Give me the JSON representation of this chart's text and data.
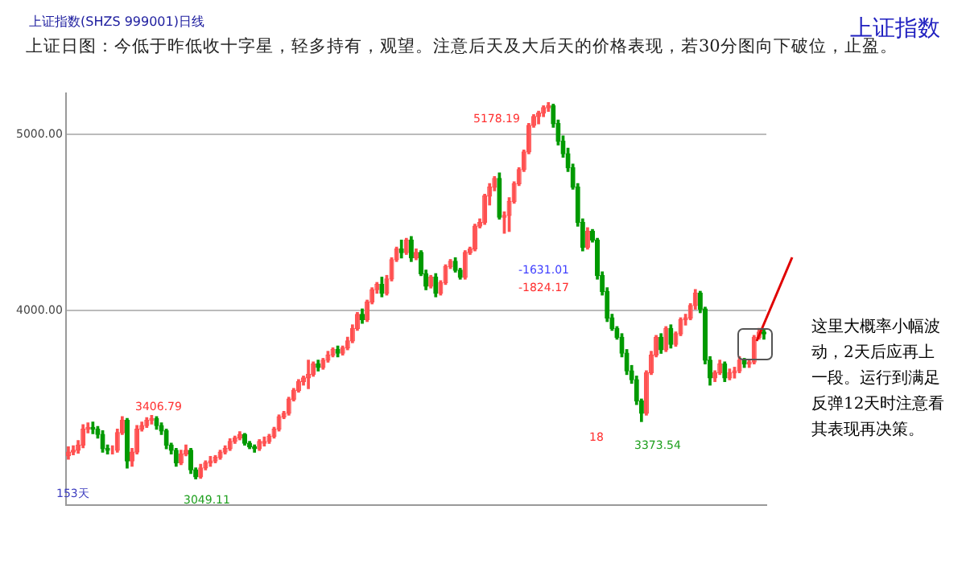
{
  "chart_data": {
    "type": "candlestick",
    "title": "上证日图：今低于昨低收十字星，轻多持有，观望。注意后天及大后天的价格表现，若30分图向下破位，止盈。",
    "subtitle": "上证指数(SHZS 999001)日线",
    "categories": [
      null,
      null,
      null,
      null,
      null,
      null,
      null,
      null,
      null,
      null,
      null,
      null,
      null,
      null,
      null,
      null,
      null,
      null,
      null,
      null,
      null,
      null,
      null,
      null,
      null,
      null,
      null,
      null,
      null,
      null,
      null,
      null,
      null,
      null,
      null,
      null,
      null,
      null,
      null,
      null,
      null,
      null,
      null,
      null,
      null,
      null,
      null,
      null,
      null,
      null,
      null,
      null,
      null,
      null,
      null,
      null,
      null,
      null,
      null,
      null,
      null,
      null,
      null,
      null,
      null,
      null,
      null,
      null,
      null,
      null,
      null,
      null,
      null,
      null,
      null,
      null,
      null,
      null,
      null,
      null,
      null,
      null,
      null,
      null,
      null,
      null,
      null,
      null,
      null,
      null,
      null,
      null,
      null,
      null,
      null,
      null,
      null,
      null,
      null,
      null,
      null,
      null,
      null,
      null,
      null,
      null,
      null,
      null,
      null,
      null,
      null,
      null,
      null,
      null,
      null,
      null,
      null,
      null,
      null,
      null,
      null,
      null,
      null,
      null,
      null,
      null,
      null,
      null,
      null,
      null,
      null,
      null,
      null,
      null,
      null,
      null,
      null,
      null,
      null,
      null,
      null,
      null,
      null
    ],
    "ohlc": [
      [
        3180,
        3230,
        3160,
        3200
      ],
      [
        3200,
        3235,
        3185,
        3210
      ],
      [
        3210,
        3265,
        3195,
        3240
      ],
      [
        3240,
        3355,
        3225,
        3330
      ],
      [
        3330,
        3365,
        3310,
        3340
      ],
      [
        3340,
        3370,
        3305,
        3330
      ],
      [
        3330,
        3345,
        3280,
        3300
      ],
      [
        3300,
        3320,
        3200,
        3220
      ],
      [
        3220,
        3240,
        3190,
        3210
      ],
      [
        3210,
        3235,
        3190,
        3210
      ],
      [
        3210,
        3330,
        3200,
        3310
      ],
      [
        3310,
        3400,
        3300,
        3380
      ],
      [
        3380,
        3390,
        3110,
        3150
      ],
      [
        3150,
        3220,
        3120,
        3200
      ],
      [
        3200,
        3350,
        3190,
        3330
      ],
      [
        3330,
        3370,
        3320,
        3350
      ],
      [
        3350,
        3395,
        3340,
        3380
      ],
      [
        3380,
        3406.79,
        3360,
        3390
      ],
      [
        3390,
        3400,
        3330,
        3350
      ],
      [
        3350,
        3365,
        3300,
        3320
      ],
      [
        3320,
        3330,
        3220,
        3240
      ],
      [
        3240,
        3250,
        3190,
        3210
      ],
      [
        3210,
        3220,
        3120,
        3140
      ],
      [
        3140,
        3210,
        3130,
        3190
      ],
      [
        3190,
        3240,
        3180,
        3210
      ],
      [
        3210,
        3220,
        3080,
        3100
      ],
      [
        3100,
        3110,
        3049.11,
        3060
      ],
      [
        3060,
        3130,
        3052,
        3110
      ],
      [
        3110,
        3150,
        3100,
        3140
      ],
      [
        3140,
        3175,
        3120,
        3150
      ],
      [
        3150,
        3180,
        3140,
        3170
      ],
      [
        3170,
        3210,
        3160,
        3200
      ],
      [
        3200,
        3235,
        3190,
        3220
      ],
      [
        3220,
        3275,
        3210,
        3260
      ],
      [
        3260,
        3290,
        3250,
        3280
      ],
      [
        3280,
        3315,
        3270,
        3300
      ],
      [
        3300,
        3305,
        3240,
        3250
      ],
      [
        3250,
        3260,
        3220,
        3230
      ],
      [
        3230,
        3240,
        3200,
        3220
      ],
      [
        3220,
        3270,
        3210,
        3260
      ],
      [
        3250,
        3285,
        3235,
        3260
      ],
      [
        3260,
        3300,
        3250,
        3290
      ],
      [
        3290,
        3340,
        3280,
        3330
      ],
      [
        3330,
        3410,
        3320,
        3400
      ],
      [
        3400,
        3430,
        3390,
        3420
      ],
      [
        3420,
        3510,
        3410,
        3500
      ],
      [
        3500,
        3560,
        3490,
        3550
      ],
      [
        3550,
        3610,
        3540,
        3600
      ],
      [
        3600,
        3630,
        3580,
        3620
      ],
      [
        3620,
        3720,
        3560,
        3640
      ],
      [
        3640,
        3710,
        3630,
        3700
      ],
      [
        3700,
        3720,
        3660,
        3680
      ],
      [
        3680,
        3730,
        3670,
        3720
      ],
      [
        3720,
        3770,
        3710,
        3750
      ],
      [
        3750,
        3790,
        3740,
        3780
      ],
      [
        3780,
        3800,
        3740,
        3760
      ],
      [
        3760,
        3800,
        3750,
        3790
      ],
      [
        3790,
        3850,
        3780,
        3830
      ],
      [
        3830,
        3920,
        3820,
        3900
      ],
      [
        3900,
        3990,
        3890,
        3980
      ],
      [
        3980,
        4010,
        3930,
        3950
      ],
      [
        3950,
        4060,
        3940,
        4050
      ],
      [
        4050,
        4130,
        4040,
        4120
      ],
      [
        4120,
        4160,
        4100,
        4150
      ],
      [
        4150,
        4190,
        4080,
        4100
      ],
      [
        4100,
        4200,
        4090,
        4180
      ],
      [
        4180,
        4300,
        4170,
        4290
      ],
      [
        4290,
        4360,
        4280,
        4350
      ],
      [
        4350,
        4400,
        4300,
        4330
      ],
      [
        4330,
        4410,
        4320,
        4400
      ],
      [
        4400,
        4420,
        4280,
        4300
      ],
      [
        4300,
        4350,
        4290,
        4330
      ],
      [
        4330,
        4340,
        4200,
        4210
      ],
      [
        4210,
        4230,
        4120,
        4140
      ],
      [
        4140,
        4200,
        4130,
        4190
      ],
      [
        4190,
        4210,
        4080,
        4100
      ],
      [
        4100,
        4170,
        4090,
        4160
      ],
      [
        4160,
        4260,
        4150,
        4250
      ],
      [
        4250,
        4290,
        4240,
        4280
      ],
      [
        4280,
        4300,
        4220,
        4230
      ],
      [
        4230,
        4240,
        4180,
        4190
      ],
      [
        4190,
        4340,
        4180,
        4330
      ],
      [
        4330,
        4360,
        4320,
        4350
      ],
      [
        4350,
        4490,
        4340,
        4480
      ],
      [
        4480,
        4520,
        4470,
        4500
      ],
      [
        4500,
        4660,
        4490,
        4650
      ],
      [
        4650,
        4720,
        4600,
        4700
      ],
      [
        4700,
        4760,
        4680,
        4750
      ],
      [
        4750,
        4780,
        4520,
        4530
      ],
      [
        4530,
        4560,
        4440,
        4540
      ],
      [
        4540,
        4640,
        4450,
        4620
      ],
      [
        4620,
        4730,
        4610,
        4720
      ],
      [
        4720,
        4810,
        4710,
        4800
      ],
      [
        4800,
        4910,
        4790,
        4900
      ],
      [
        4900,
        5060,
        4890,
        5050
      ],
      [
        5050,
        5110,
        5040,
        5100
      ],
      [
        5100,
        5130,
        5060,
        5120
      ],
      [
        5120,
        5160,
        5100,
        5150
      ],
      [
        5150,
        5178.19,
        5130,
        5160
      ],
      [
        5160,
        5170,
        5040,
        5060
      ],
      [
        5060,
        5080,
        4940,
        4960
      ],
      [
        4960,
        4990,
        4870,
        4890
      ],
      [
        4890,
        4920,
        4790,
        4810
      ],
      [
        4810,
        4830,
        4690,
        4700
      ],
      [
        4700,
        4720,
        4480,
        4500
      ],
      [
        4500,
        4520,
        4340,
        4360
      ],
      [
        4360,
        4470,
        4350,
        4450
      ],
      [
        4450,
        4460,
        4390,
        4400
      ],
      [
        4400,
        4410,
        4180,
        4200
      ],
      [
        4200,
        4220,
        4090,
        4110
      ],
      [
        4110,
        4130,
        3940,
        3960
      ],
      [
        3960,
        3980,
        3890,
        3900
      ],
      [
        3900,
        3910,
        3840,
        3850
      ],
      [
        3850,
        3870,
        3740,
        3760
      ],
      [
        3760,
        3780,
        3640,
        3660
      ],
      [
        3660,
        3690,
        3590,
        3610
      ],
      [
        3610,
        3630,
        3470,
        3490
      ],
      [
        3490,
        3500,
        3373.54,
        3420
      ],
      [
        3420,
        3660,
        3410,
        3650
      ],
      [
        3650,
        3770,
        3640,
        3750
      ],
      [
        3750,
        3860,
        3740,
        3850
      ],
      [
        3850,
        3870,
        3760,
        3780
      ],
      [
        3780,
        3910,
        3770,
        3900
      ],
      [
        3900,
        3920,
        3790,
        3810
      ],
      [
        3810,
        3880,
        3800,
        3870
      ],
      [
        3870,
        3960,
        3860,
        3950
      ],
      [
        3950,
        3980,
        3920,
        3960
      ],
      [
        3960,
        4040,
        3950,
        4030
      ],
      [
        4030,
        4120,
        4010,
        4100
      ],
      [
        4100,
        4110,
        3990,
        4010
      ],
      [
        4010,
        4020,
        3700,
        3720
      ],
      [
        3720,
        3740,
        3580,
        3620
      ],
      [
        3620,
        3660,
        3600,
        3650
      ],
      [
        3650,
        3720,
        3640,
        3700
      ],
      [
        3700,
        3710,
        3600,
        3620
      ],
      [
        3620,
        3670,
        3610,
        3650
      ],
      [
        3650,
        3680,
        3620,
        3660
      ],
      [
        3660,
        3740,
        3650,
        3720
      ],
      [
        3720,
        3730,
        3680,
        3700
      ],
      [
        3700,
        3720,
        3680,
        3710
      ],
      [
        3710,
        3860,
        3700,
        3850
      ],
      [
        3850,
        3900,
        3840,
        3880
      ],
      [
        3880,
        3890,
        3840,
        3870
      ]
    ],
    "ylim": [
      2900,
      5230
    ],
    "yticks": [
      {
        "value": 4000,
        "label": "4000.00"
      },
      {
        "value": 5000,
        "label": "5000.00"
      }
    ],
    "grid": "y",
    "annotations": [
      "5178.19",
      "3406.79",
      "3049.11",
      "3373.54",
      "-1631.01",
      "-1824.17",
      "18",
      "153天",
      "上证指数",
      "这里大概率小幅波动，2天后应再上一段。运行到满足反弹12天时注意看其表现再决策。"
    ]
  }
}
